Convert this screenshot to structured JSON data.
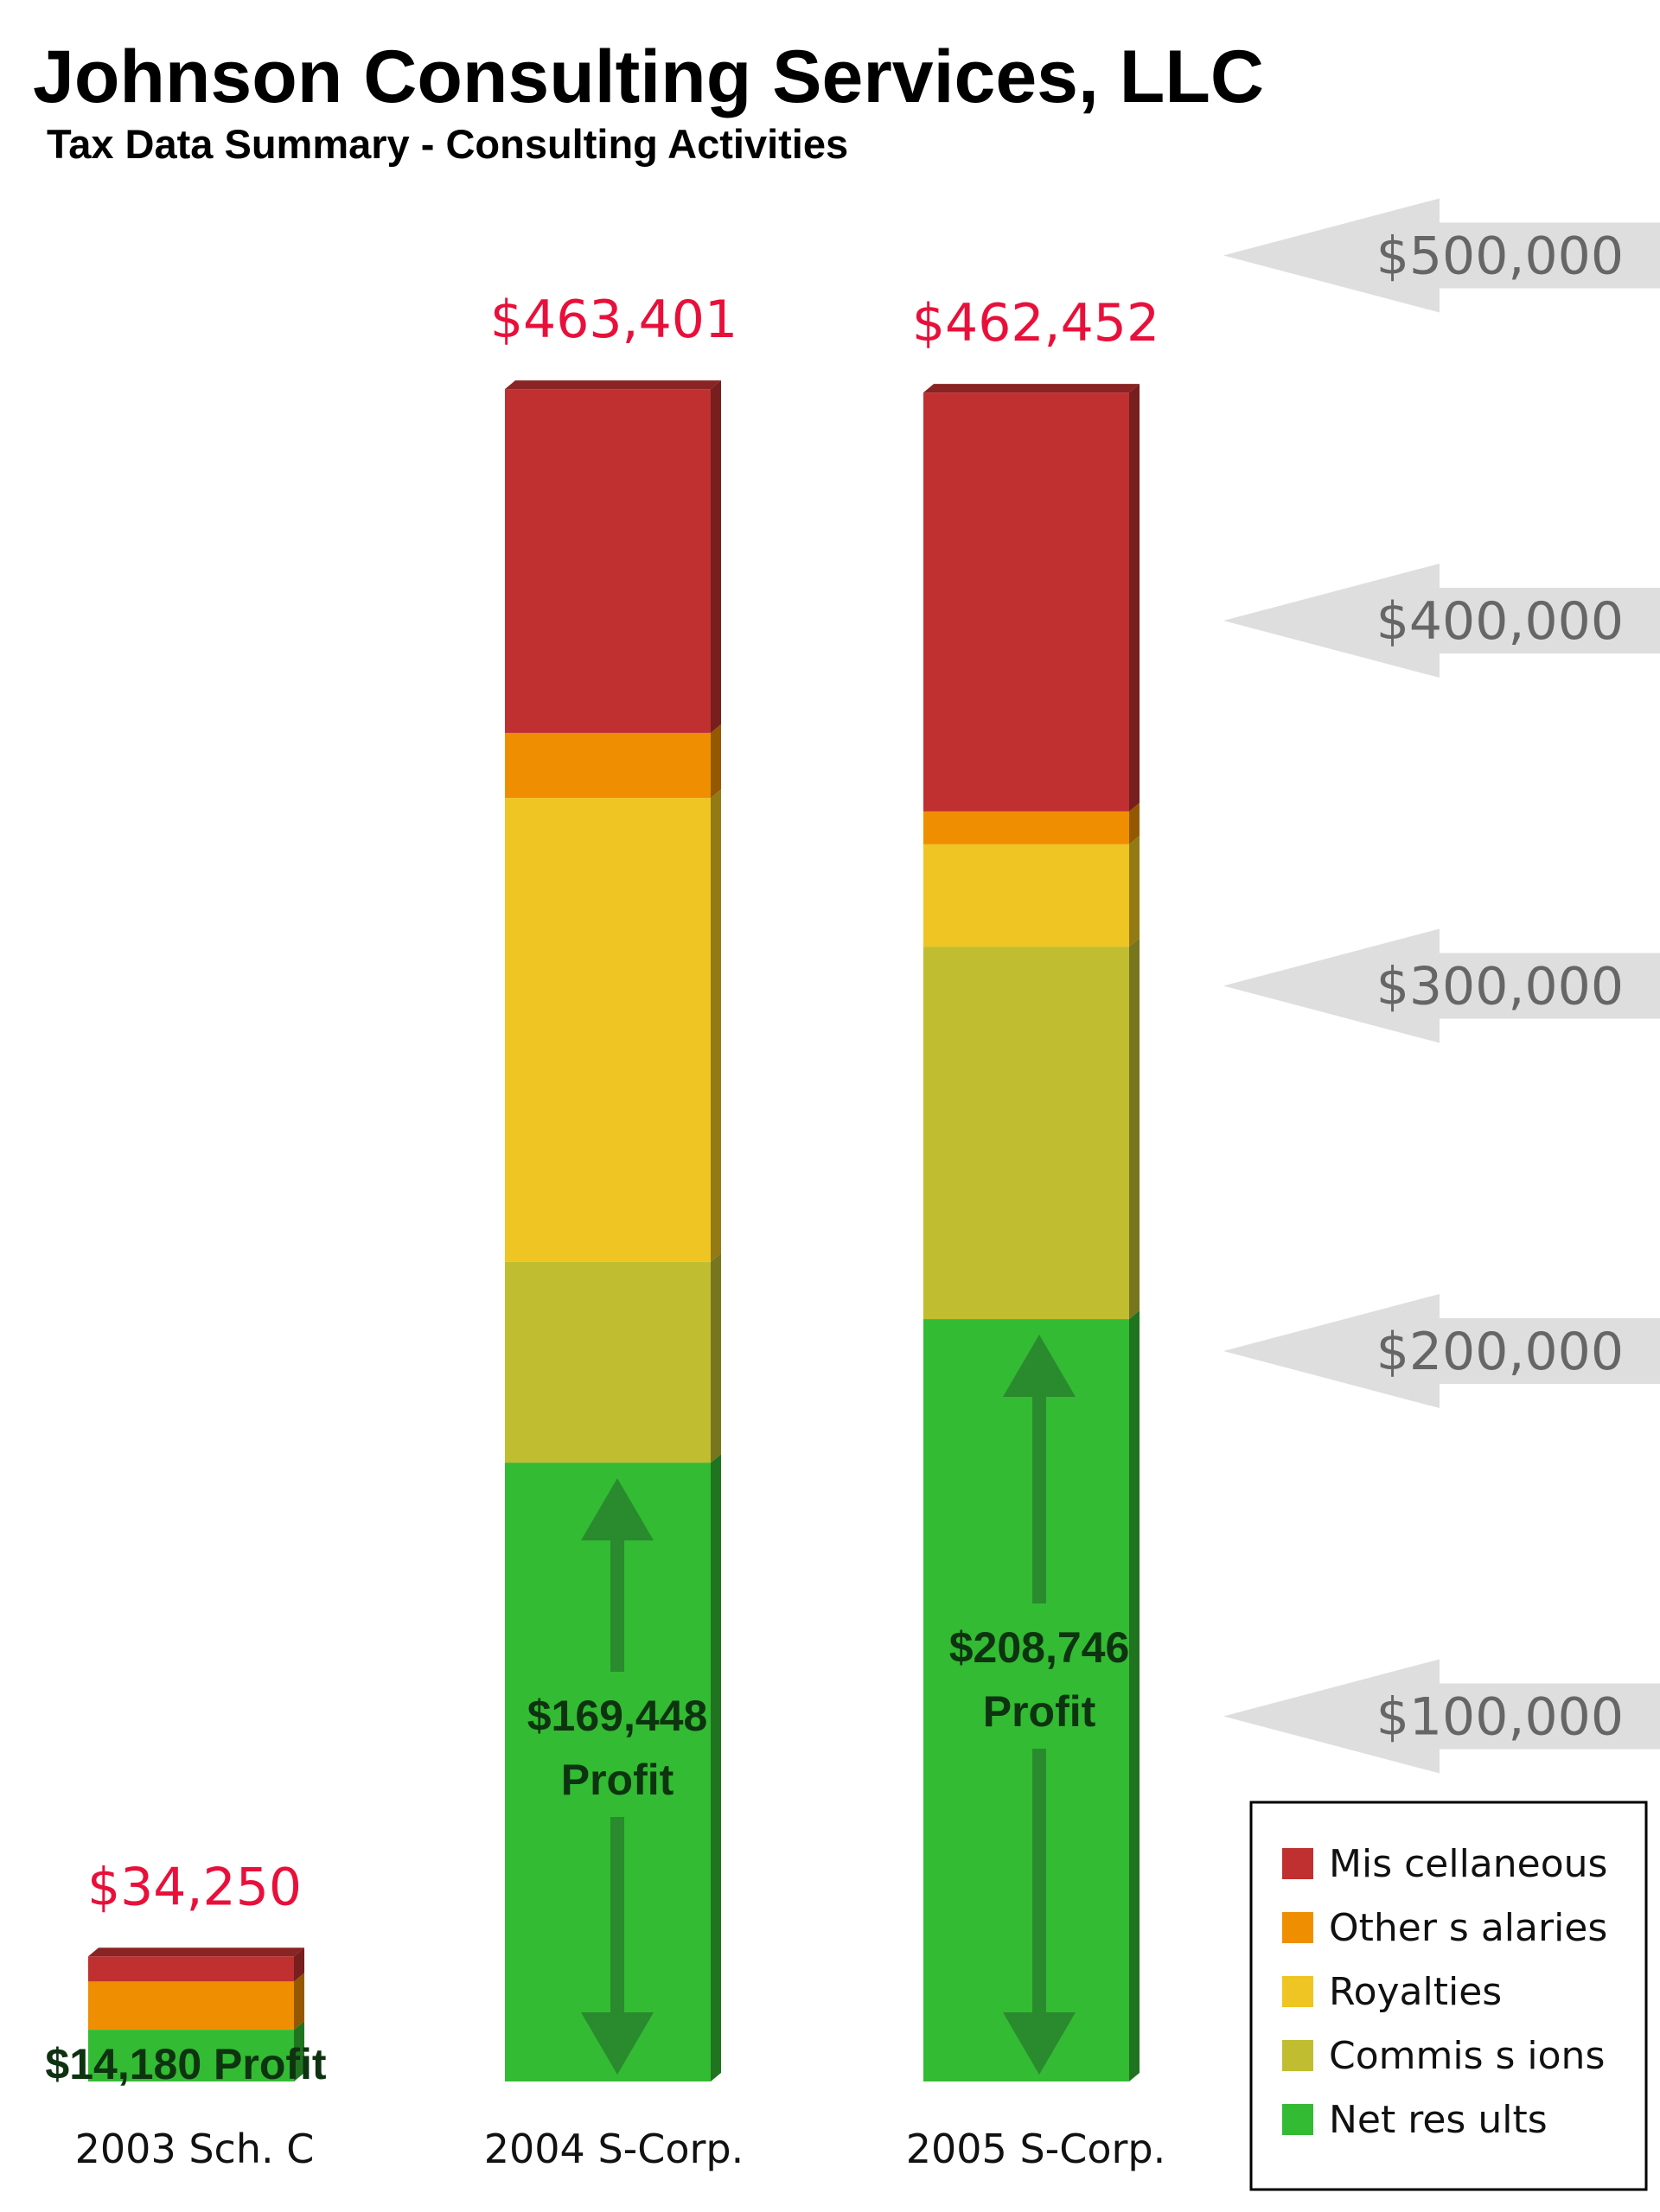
{
  "chart_data": {
    "type": "bar",
    "stacked": true,
    "title": "Johnson Consulting Services, LLC",
    "subtitle": "Tax Data Summary - Consulting Activities",
    "categories": [
      "2003 Sch. C",
      "2004 S-Corp.",
      "2005 S-Corp."
    ],
    "series": [
      {
        "name": "Net results",
        "values": [
          14180,
          169448,
          208746
        ],
        "color": "#33bb33"
      },
      {
        "name": "Commissions",
        "values": [
          0,
          55000,
          102000
        ],
        "color": "#c0be30"
      },
      {
        "name": "Royalties",
        "values": [
          0,
          127000,
          28000
        ],
        "color": "#eec522"
      },
      {
        "name": "Other salaries",
        "values": [
          13200,
          17800,
          9000
        ],
        "color": "#ef8f00"
      },
      {
        "name": "Miscellaneous",
        "values": [
          6870,
          94153,
          114706
        ],
        "color": "#c03030"
      }
    ],
    "totals": [
      "$34,250",
      "$463,401",
      "$462,452"
    ],
    "profit_labels": [
      "$14,180 Profit",
      "$169,448",
      "$208,746"
    ],
    "profit_word": "Profit",
    "yticks": [
      {
        "value": 100000,
        "label": "$100,000"
      },
      {
        "value": 200000,
        "label": "$200,000"
      },
      {
        "value": 300000,
        "label": "$300,000"
      },
      {
        "value": 400000,
        "label": "$400,000"
      },
      {
        "value": 500000,
        "label": "$500,000"
      }
    ],
    "ylim": [
      0,
      500000
    ],
    "legend": {
      "position": "bottom-right",
      "items": [
        "Mis cellaneous",
        "Other s alaries",
        "Royalties",
        "Commis s ions",
        "Net res ults"
      ]
    },
    "grid": false
  }
}
